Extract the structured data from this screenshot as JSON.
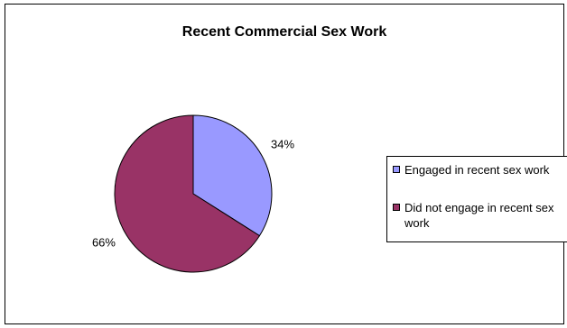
{
  "chart_data": {
    "type": "pie",
    "title": "Recent Commercial Sex Work",
    "categories": [
      "Engaged in recent sex work",
      "Did not engage in recent sex work"
    ],
    "values": [
      34,
      66
    ],
    "data_labels": [
      "34%",
      "66%"
    ],
    "colors": [
      "#9999ff",
      "#993366"
    ],
    "legend_position": "right"
  }
}
